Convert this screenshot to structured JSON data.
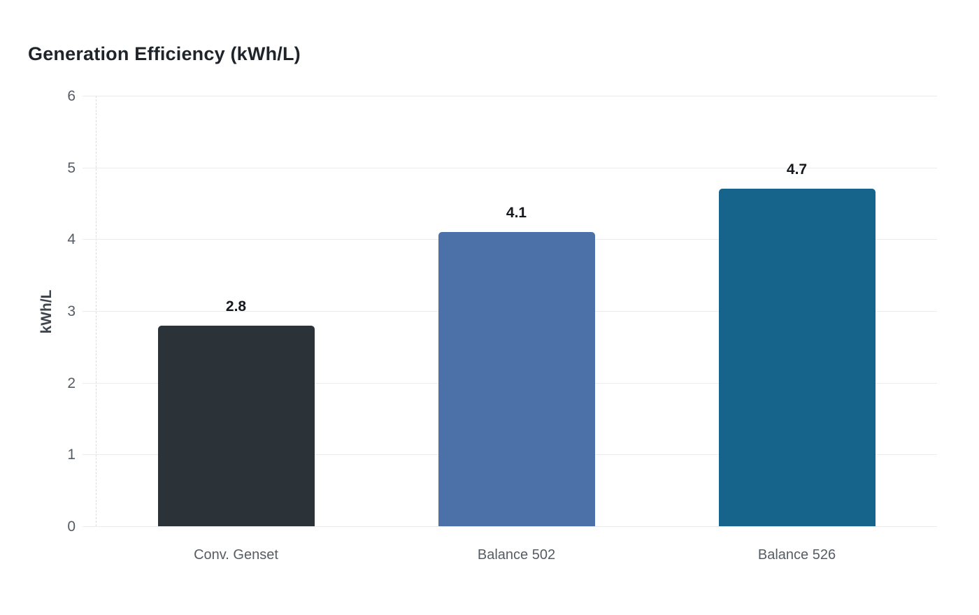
{
  "title": "Generation Efficiency (kWh/L)",
  "chart_data": {
    "type": "bar",
    "title": "Generation Efficiency (kWh/L)",
    "categories": [
      "Conv. Genset",
      "Balance 502",
      "Balance 526"
    ],
    "values": [
      2.8,
      4.1,
      4.7
    ],
    "value_labels": [
      "2.8",
      "4.1",
      "4.7"
    ],
    "bar_colors": [
      "#2b3338",
      "#4b71a8",
      "#16638c"
    ],
    "xlabel": "",
    "ylabel": "kWh/L",
    "ylim": [
      0,
      6
    ],
    "yticks": [
      0,
      1,
      2,
      3,
      4,
      5,
      6
    ],
    "grid": true,
    "legend": "none"
  },
  "style_colors": {
    "background": "#ffffff",
    "title_text": "#1f242a",
    "tick_text": "#565c64",
    "axis_label_text": "#3f454c",
    "value_label_text": "#15191d",
    "gridline": "#ececee",
    "axis_line": "#dcdcdf"
  }
}
